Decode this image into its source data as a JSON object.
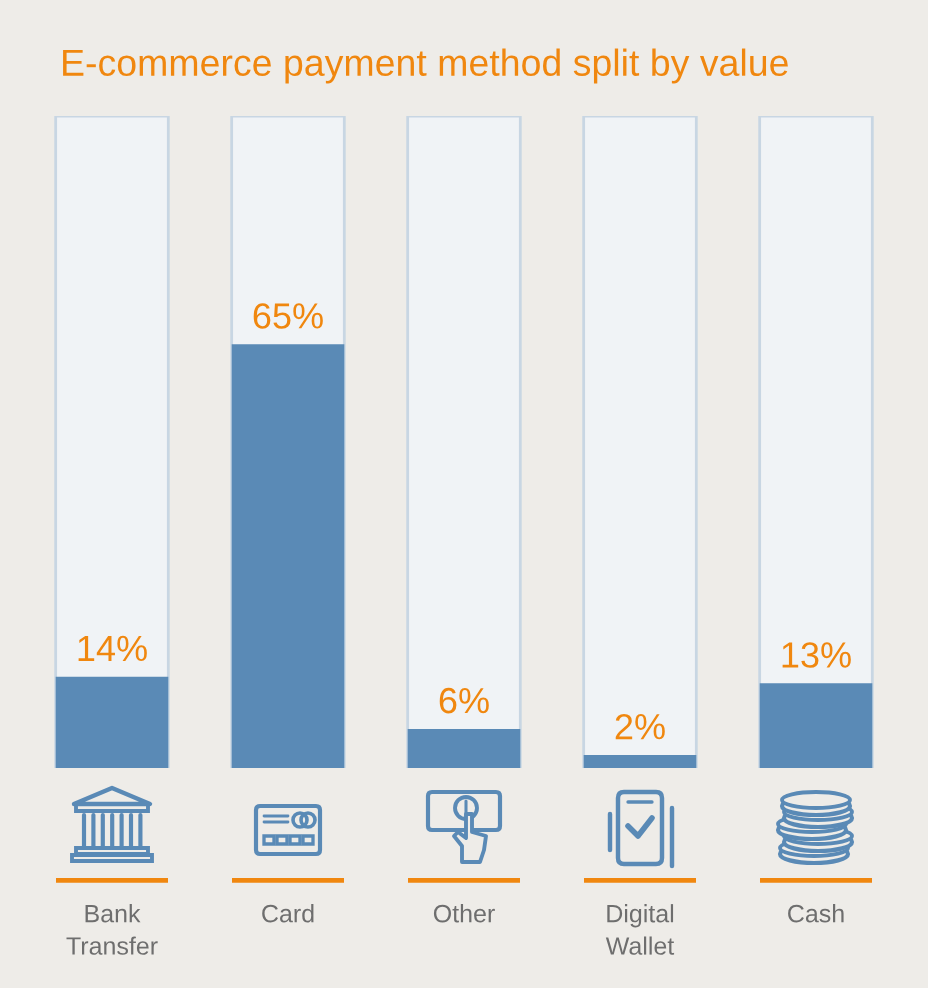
{
  "chart_data": {
    "type": "bar",
    "title": "E-commerce payment method split by value",
    "categories": [
      "Bank Transfer",
      "Card",
      "Other",
      "Digital Wallet",
      "Cash"
    ],
    "values": [
      14,
      65,
      6,
      2,
      13
    ],
    "color": "#5a8ab6",
    "value_labels": [
      "14%",
      "65%",
      "6%",
      "2%",
      "13%"
    ],
    "ylim": [
      0,
      100
    ],
    "tick_labels": "x"
  }
}
